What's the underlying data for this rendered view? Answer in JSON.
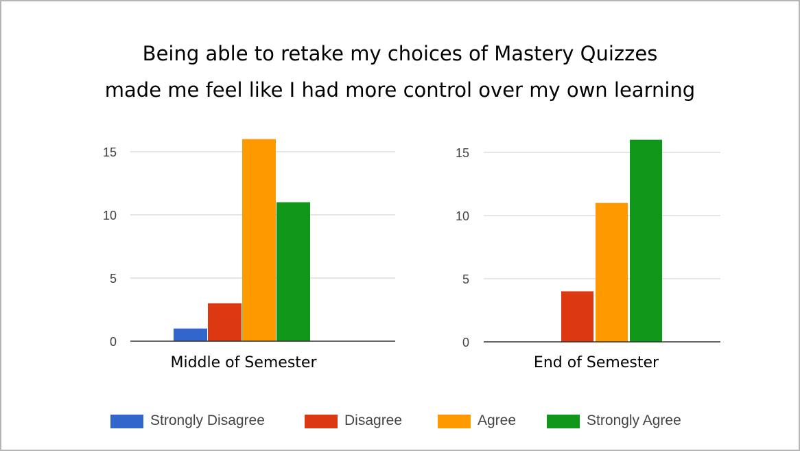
{
  "title": {
    "line1": "Being able to retake my choices of Mastery Quizzes",
    "line2": "made me feel like I had more control over my own learning"
  },
  "legend": [
    {
      "label": "Strongly Disagree",
      "color": "#3366cc"
    },
    {
      "label": "Disagree",
      "color": "#dc3912"
    },
    {
      "label": "Agree",
      "color": "#ff9900"
    },
    {
      "label": "Strongly Agree",
      "color": "#109618"
    }
  ],
  "chart_data": [
    {
      "type": "bar",
      "xlabel": "Middle of Semester",
      "categories": [
        "Strongly Disagree",
        "Disagree",
        "Agree",
        "Strongly Agree"
      ],
      "values": [
        1,
        3,
        16,
        11
      ],
      "ylim": [
        0,
        16
      ],
      "yticks": [
        0,
        5,
        10,
        15
      ],
      "grid": true
    },
    {
      "type": "bar",
      "xlabel": "End of Semester",
      "categories": [
        "Strongly Disagree",
        "Disagree",
        "Agree",
        "Strongly Agree"
      ],
      "values": [
        0,
        4,
        11,
        16
      ],
      "ylim": [
        0,
        16
      ],
      "yticks": [
        0,
        5,
        10,
        15
      ],
      "grid": true
    }
  ]
}
